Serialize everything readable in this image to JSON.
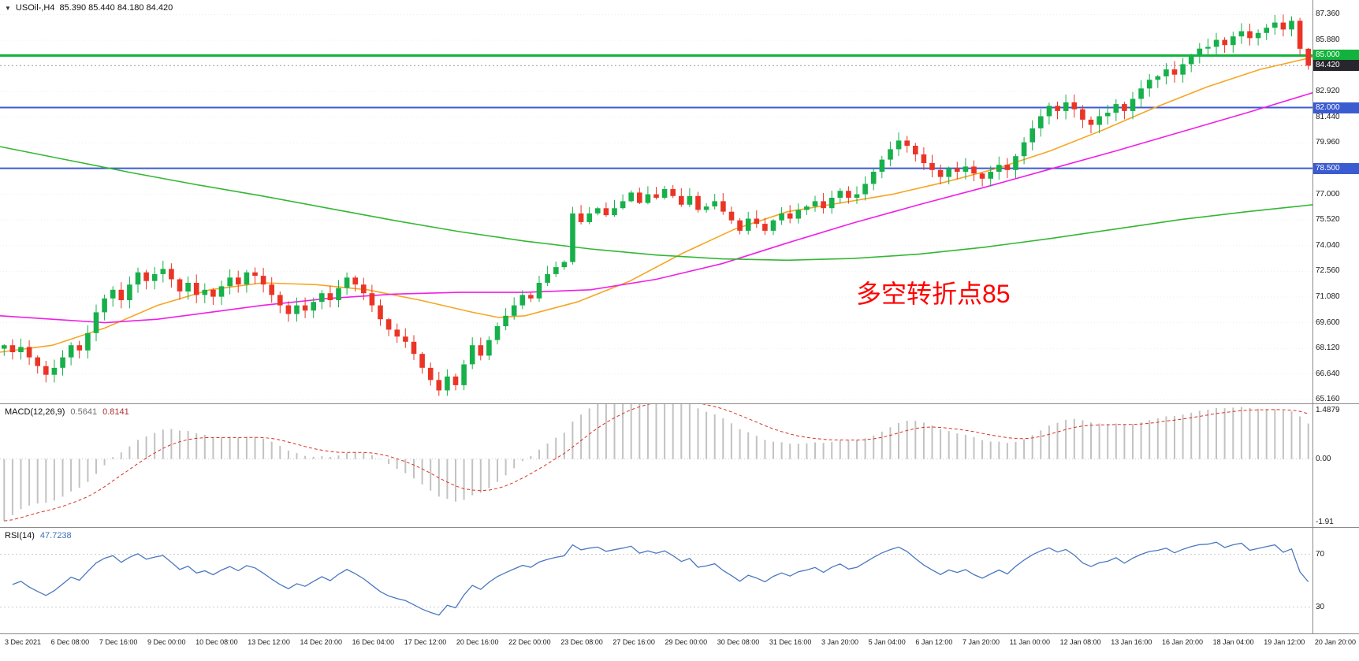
{
  "header": {
    "title_symbol": "USOil-,H4",
    "title_ohlc": "85.390 85.440 84.180 84.420"
  },
  "colors": {
    "candle_up": "#17b04a",
    "candle_down": "#ea3425",
    "ma_fast": "#f5a623",
    "ma_mid": "#f01ee6",
    "ma_slow": "#33b733",
    "hline_green": "#12b33c",
    "hline_blue": "#3b5bd0",
    "price_badge_bg": "#26262c",
    "macd_hist": "#c2c2c2",
    "macd_signal": "#d93025",
    "rsi_line": "#4a78c0",
    "annotation": "#ff0000",
    "grid": "#ededed"
  },
  "chart_data": {
    "type": "candlestick",
    "symbol": "USOil-",
    "timeframe": "H4",
    "last_ohlc": {
      "open": 85.39,
      "high": 85.44,
      "low": 84.18,
      "close": 84.42
    },
    "price_axis": {
      "min": 64.95,
      "max": 88.2,
      "labels": [
        87.36,
        85.88,
        82.92,
        81.44,
        79.96,
        77.0,
        75.52,
        74.04,
        72.56,
        71.08,
        69.6,
        68.12,
        66.64,
        65.16
      ]
    },
    "hlines": [
      {
        "price": 85.0,
        "label": "85.000",
        "color_key": "hline_green",
        "width": 3
      },
      {
        "price": 82.0,
        "label": "82.000",
        "color_key": "hline_blue",
        "width": 2
      },
      {
        "price": 78.5,
        "label": "78.500",
        "color_key": "hline_blue",
        "width": 2
      }
    ],
    "current_price": {
      "price": 84.42,
      "label": "84.420"
    },
    "annotation": {
      "text": "多空转折点85",
      "x_frac": 0.652,
      "price": 72.4
    },
    "candles": {
      "first_open": 68.1,
      "closes": [
        68.3,
        67.9,
        68.2,
        67.6,
        67.1,
        66.6,
        67.0,
        67.6,
        68.3,
        68.0,
        69.0,
        70.2,
        71.0,
        71.5,
        70.9,
        71.8,
        72.5,
        72.0,
        72.4,
        72.7,
        72.1,
        71.4,
        71.9,
        71.2,
        71.5,
        71.1,
        71.7,
        72.2,
        71.8,
        72.5,
        72.3,
        71.8,
        71.2,
        70.6,
        70.1,
        70.6,
        70.3,
        70.8,
        71.3,
        70.9,
        71.6,
        72.2,
        71.8,
        71.3,
        70.6,
        69.8,
        69.2,
        68.8,
        68.5,
        67.8,
        67.0,
        66.3,
        65.7,
        66.5,
        66.0,
        67.2,
        68.3,
        67.7,
        68.6,
        69.4,
        70.0,
        70.6,
        71.2,
        71.0,
        71.9,
        72.4,
        72.8,
        73.1,
        75.9,
        75.4,
        75.9,
        76.2,
        75.8,
        76.2,
        76.6,
        77.1,
        76.5,
        77.0,
        76.8,
        77.3,
        76.9,
        76.4,
        76.9,
        76.1,
        76.3,
        76.6,
        76.0,
        75.5,
        74.9,
        75.6,
        75.3,
        74.9,
        75.5,
        75.9,
        75.6,
        76.1,
        76.3,
        76.6,
        76.2,
        76.8,
        77.2,
        76.8,
        77.0,
        77.6,
        78.3,
        79.0,
        79.6,
        80.1,
        79.8,
        79.3,
        78.8,
        78.4,
        78.0,
        78.5,
        78.3,
        78.6,
        78.2,
        77.9,
        78.3,
        78.7,
        78.4,
        79.2,
        80.0,
        80.8,
        81.5,
        82.1,
        81.8,
        82.3,
        81.9,
        81.3,
        81.0,
        81.5,
        81.7,
        82.2,
        81.8,
        82.5,
        83.1,
        83.6,
        83.8,
        84.2,
        83.9,
        84.5,
        85.0,
        85.4,
        85.5,
        85.9,
        85.6,
        86.1,
        86.4,
        86.0,
        86.3,
        86.6,
        86.9,
        86.5,
        87.0,
        85.39,
        84.42
      ]
    },
    "moving_averages": [
      {
        "name": "ma-fast-orange",
        "color_key": "ma_fast",
        "points": [
          [
            0,
            67.9
          ],
          [
            0.04,
            68.3
          ],
          [
            0.08,
            69.3
          ],
          [
            0.12,
            70.6
          ],
          [
            0.16,
            71.5
          ],
          [
            0.2,
            71.9
          ],
          [
            0.24,
            71.8
          ],
          [
            0.28,
            71.5
          ],
          [
            0.32,
            70.9
          ],
          [
            0.36,
            70.2
          ],
          [
            0.38,
            69.9
          ],
          [
            0.4,
            70.0
          ],
          [
            0.44,
            70.8
          ],
          [
            0.48,
            72.0
          ],
          [
            0.52,
            73.6
          ],
          [
            0.56,
            75.0
          ],
          [
            0.6,
            76.0
          ],
          [
            0.64,
            76.5
          ],
          [
            0.68,
            77.0
          ],
          [
            0.72,
            77.7
          ],
          [
            0.76,
            78.5
          ],
          [
            0.8,
            79.5
          ],
          [
            0.84,
            80.7
          ],
          [
            0.88,
            82.0
          ],
          [
            0.92,
            83.2
          ],
          [
            0.96,
            84.2
          ],
          [
            1,
            84.9
          ]
        ]
      },
      {
        "name": "ma-mid-magenta",
        "color_key": "ma_mid",
        "points": [
          [
            0,
            70.0
          ],
          [
            0.05,
            69.75
          ],
          [
            0.08,
            69.6
          ],
          [
            0.12,
            69.8
          ],
          [
            0.16,
            70.2
          ],
          [
            0.2,
            70.6
          ],
          [
            0.25,
            71.0
          ],
          [
            0.3,
            71.25
          ],
          [
            0.35,
            71.35
          ],
          [
            0.4,
            71.35
          ],
          [
            0.45,
            71.5
          ],
          [
            0.5,
            72.1
          ],
          [
            0.55,
            73.0
          ],
          [
            0.6,
            74.2
          ],
          [
            0.65,
            75.35
          ],
          [
            0.7,
            76.4
          ],
          [
            0.75,
            77.4
          ],
          [
            0.8,
            78.45
          ],
          [
            0.85,
            79.5
          ],
          [
            0.9,
            80.6
          ],
          [
            0.95,
            81.7
          ],
          [
            1,
            82.85
          ]
        ]
      },
      {
        "name": "ma-slow-green",
        "color_key": "ma_slow",
        "points": [
          [
            0,
            79.75
          ],
          [
            0.05,
            79.0
          ],
          [
            0.1,
            78.25
          ],
          [
            0.15,
            77.55
          ],
          [
            0.2,
            76.9
          ],
          [
            0.25,
            76.2
          ],
          [
            0.3,
            75.5
          ],
          [
            0.35,
            74.85
          ],
          [
            0.4,
            74.3
          ],
          [
            0.45,
            73.85
          ],
          [
            0.5,
            73.5
          ],
          [
            0.55,
            73.28
          ],
          [
            0.6,
            73.2
          ],
          [
            0.65,
            73.3
          ],
          [
            0.7,
            73.55
          ],
          [
            0.75,
            73.95
          ],
          [
            0.8,
            74.45
          ],
          [
            0.85,
            75.0
          ],
          [
            0.9,
            75.55
          ],
          [
            0.95,
            76.0
          ],
          [
            1,
            76.4
          ]
        ]
      }
    ],
    "macd": {
      "label": "MACD(12,26,9)",
      "main_value": "0.5641",
      "signal_value": "0.8141",
      "params": [
        12,
        26,
        9
      ],
      "axis_labels": [
        {
          "text": "1.4879",
          "value": 1.4879
        },
        {
          "text": "0.00",
          "value": 0.0
        },
        {
          "text": "-1.91",
          "value": -1.91
        }
      ],
      "scale": {
        "min": -2.05,
        "max": 1.65
      }
    },
    "rsi": {
      "label": "RSI(14)",
      "value": "47.7238",
      "period": 14,
      "levels": [
        {
          "text": "70",
          "value": 70
        },
        {
          "text": "30",
          "value": 30
        }
      ],
      "scale": {
        "min": 10,
        "max": 90
      }
    },
    "time_axis": [
      "3 Dec 2021",
      "6 Dec 08:00",
      "7 Dec 16:00",
      "9 Dec 00:00",
      "10 Dec 08:00",
      "13 Dec 12:00",
      "14 Dec 20:00",
      "16 Dec 04:00",
      "17 Dec 12:00",
      "20 Dec 16:00",
      "22 Dec 00:00",
      "23 Dec 08:00",
      "27 Dec 16:00",
      "29 Dec 00:00",
      "30 Dec 08:00",
      "31 Dec 16:00",
      "3 Jan 20:00",
      "5 Jan 04:00",
      "6 Jan 12:00",
      "7 Jan 20:00",
      "11 Jan 00:00",
      "12 Jan 08:00",
      "13 Jan 16:00",
      "16 Jan 20:00",
      "18 Jan 04:00",
      "19 Jan 12:00",
      "20 Jan 20:00"
    ]
  }
}
